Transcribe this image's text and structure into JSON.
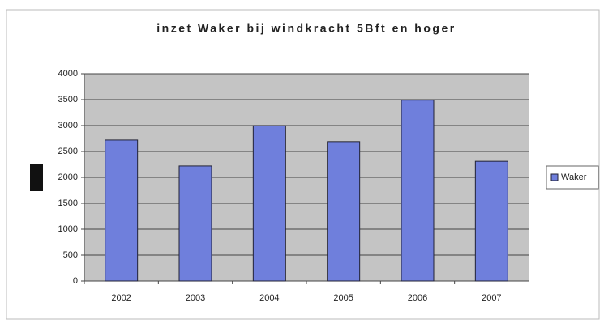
{
  "chart_data": {
    "type": "bar",
    "title": "inzet Waker bij windkracht 5Bft en hoger",
    "categories": [
      "2002",
      "2003",
      "2004",
      "2005",
      "2006",
      "2007"
    ],
    "series": [
      {
        "name": "Waker",
        "color": "#6f7fdc",
        "values": [
          2720,
          2220,
          3000,
          2690,
          3490,
          2310
        ]
      }
    ],
    "ylim": [
      0,
      4000
    ],
    "yticks": [
      0,
      500,
      1000,
      1500,
      2000,
      2500,
      3000,
      3500,
      4000
    ],
    "grid": true,
    "legend": "right"
  }
}
